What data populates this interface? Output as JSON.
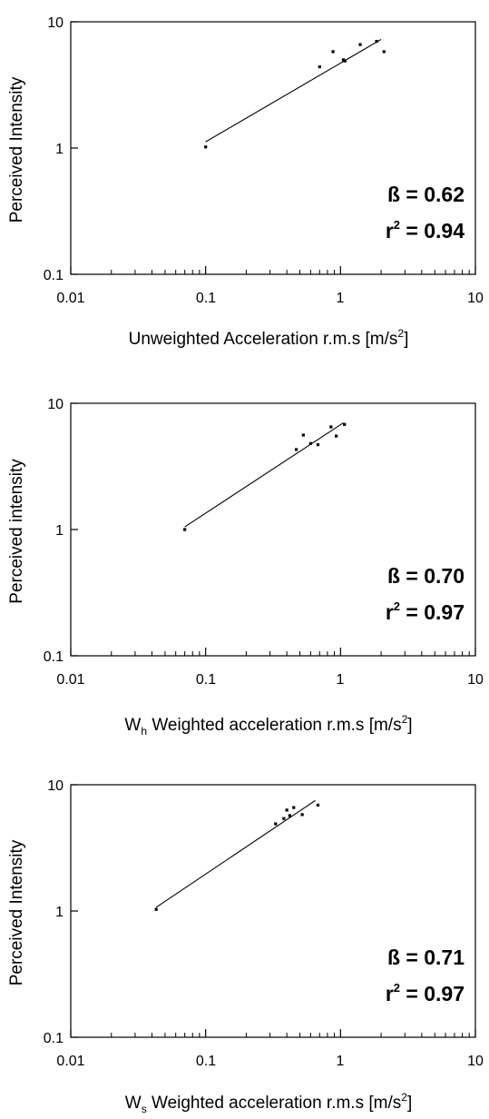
{
  "chart_data": [
    {
      "type": "scatter",
      "title": "",
      "xscale": "log",
      "yscale": "log",
      "xlim": [
        0.01,
        10
      ],
      "ylim": [
        0.1,
        10
      ],
      "x_ticks": [
        "0.01",
        "0.1",
        "1",
        "10"
      ],
      "y_ticks": [
        "0.1",
        "1",
        "10"
      ],
      "ylabel": "Perceived Intensity",
      "xlabel": {
        "prefix": "",
        "sub": "",
        "main": "Unweighted Acceleration r.m.s [m/s",
        "sup": "2",
        "suffix": "]"
      },
      "stats": {
        "beta": "ß = 0.62",
        "r_prefix": "r",
        "r_sup": "2",
        "r_suffix": " = 0.94"
      },
      "points": [
        {
          "x": 0.1,
          "y": 1.02
        },
        {
          "x": 0.7,
          "y": 4.4
        },
        {
          "x": 0.88,
          "y": 5.8
        },
        {
          "x": 1.05,
          "y": 5.0
        },
        {
          "x": 1.08,
          "y": 4.9
        },
        {
          "x": 1.4,
          "y": 6.6
        },
        {
          "x": 1.85,
          "y": 7.0
        },
        {
          "x": 2.1,
          "y": 5.8
        }
      ],
      "fit": {
        "x": [
          0.1,
          2.0
        ],
        "y": [
          1.12,
          7.25
        ]
      },
      "grid": false,
      "legend": "none"
    },
    {
      "type": "scatter",
      "title": "",
      "xscale": "log",
      "yscale": "log",
      "xlim": [
        0.01,
        10
      ],
      "ylim": [
        0.1,
        10
      ],
      "x_ticks": [
        "0.01",
        "0.1",
        "1",
        "10"
      ],
      "y_ticks": [
        "0.1",
        "1",
        "10"
      ],
      "ylabel": "Perceived intensity",
      "xlabel": {
        "prefix": "W",
        "sub": "h",
        "main": " Weighted acceleration r.m.s [m/s",
        "sup": "2",
        "suffix": "]"
      },
      "stats": {
        "beta": "ß = 0.70",
        "r_prefix": "r",
        "r_sup": "2",
        "r_suffix": " = 0.97"
      },
      "points": [
        {
          "x": 0.07,
          "y": 1.0
        },
        {
          "x": 0.47,
          "y": 4.3
        },
        {
          "x": 0.53,
          "y": 5.6
        },
        {
          "x": 0.6,
          "y": 4.8
        },
        {
          "x": 0.68,
          "y": 4.7
        },
        {
          "x": 0.85,
          "y": 6.5
        },
        {
          "x": 0.93,
          "y": 5.5
        },
        {
          "x": 1.07,
          "y": 6.8
        }
      ],
      "fit": {
        "x": [
          0.07,
          1.05
        ],
        "y": [
          1.05,
          7.0
        ]
      },
      "grid": false,
      "legend": "none"
    },
    {
      "type": "scatter",
      "title": "",
      "xscale": "log",
      "yscale": "log",
      "xlim": [
        0.01,
        10
      ],
      "ylim": [
        0.1,
        10
      ],
      "x_ticks": [
        "0.01",
        "0.1",
        "1",
        "10"
      ],
      "y_ticks": [
        "0.1",
        "1",
        "10"
      ],
      "ylabel": "Perceived Intensity",
      "xlabel": {
        "prefix": "W",
        "sub": "s",
        "main": " Weighted acceleration r.m.s [m/s",
        "sup": "2",
        "suffix": "]"
      },
      "stats": {
        "beta": "ß = 0.71",
        "r_prefix": "r",
        "r_sup": "2",
        "r_suffix": " = 0.97"
      },
      "points": [
        {
          "x": 0.043,
          "y": 1.03
        },
        {
          "x": 0.33,
          "y": 4.9
        },
        {
          "x": 0.38,
          "y": 5.4
        },
        {
          "x": 0.4,
          "y": 6.3
        },
        {
          "x": 0.42,
          "y": 5.7
        },
        {
          "x": 0.45,
          "y": 6.6
        },
        {
          "x": 0.52,
          "y": 5.8
        },
        {
          "x": 0.68,
          "y": 6.9
        }
      ],
      "fit": {
        "x": [
          0.043,
          0.65
        ],
        "y": [
          1.07,
          7.5
        ]
      },
      "grid": false,
      "legend": "none"
    }
  ]
}
